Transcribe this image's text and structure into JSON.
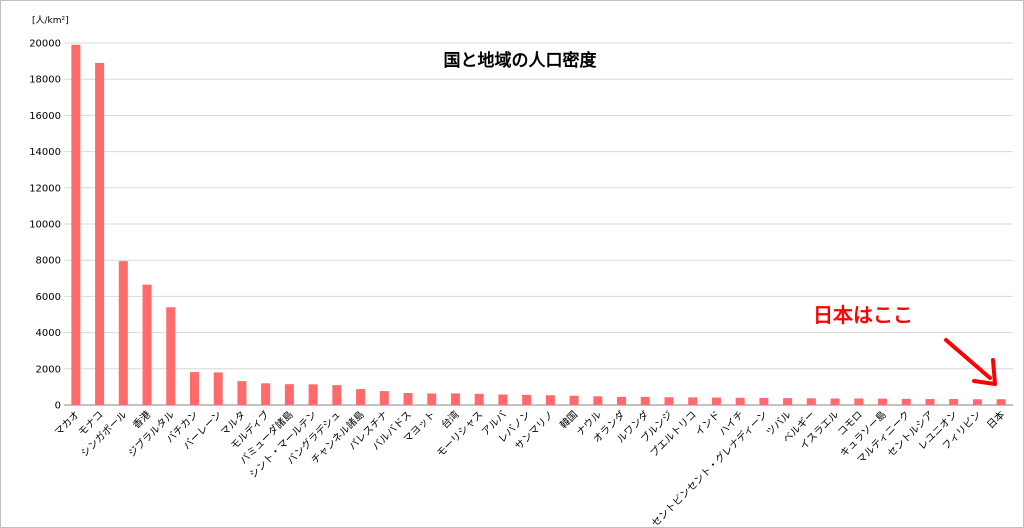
{
  "chart_data": {
    "type": "bar",
    "title": "国と地域の人口密度",
    "ylabel": "[人/km²]",
    "xlabel": "",
    "ylim": [
      0,
      20000
    ],
    "yticks": [
      0,
      2000,
      4000,
      6000,
      8000,
      10000,
      12000,
      14000,
      16000,
      18000,
      20000
    ],
    "grid": true,
    "bar_color": "#ff6b6b",
    "annotation": {
      "text": "日本はここ",
      "color": "#ff0000",
      "target": "日本"
    },
    "categories": [
      "マカオ",
      "モナコ",
      "シンガポール",
      "香港",
      "ジブラルタル",
      "バチカン",
      "バーレーン",
      "マルタ",
      "モルディブ",
      "バミューダ諸島",
      "シント・マールテン",
      "バングラデシュ",
      "チャンネル諸島",
      "パレスチナ",
      "バルバドス",
      "マヨット",
      "台湾",
      "モーリシャス",
      "アルバ",
      "レバノン",
      "サンマリノ",
      "韓国",
      "ナウル",
      "オランダ",
      "ルワンダ",
      "ブルンジ",
      "プエルトリコ",
      "インド",
      "ハイチ",
      "セントビンセント・グレナディーン",
      "ツバル",
      "ベルギー",
      "イスラエル",
      "コモロ",
      "キュラソー島",
      "マルティニーク",
      "セントルシア",
      "レユニオン",
      "フィリピン",
      "日本"
    ],
    "values": [
      19900,
      18900,
      7950,
      6650,
      5400,
      1820,
      1800,
      1320,
      1200,
      1150,
      1140,
      1100,
      880,
      770,
      660,
      640,
      640,
      620,
      580,
      560,
      540,
      510,
      480,
      450,
      450,
      430,
      420,
      410,
      400,
      390,
      380,
      370,
      360,
      360,
      350,
      340,
      330,
      330,
      320,
      320
    ]
  }
}
